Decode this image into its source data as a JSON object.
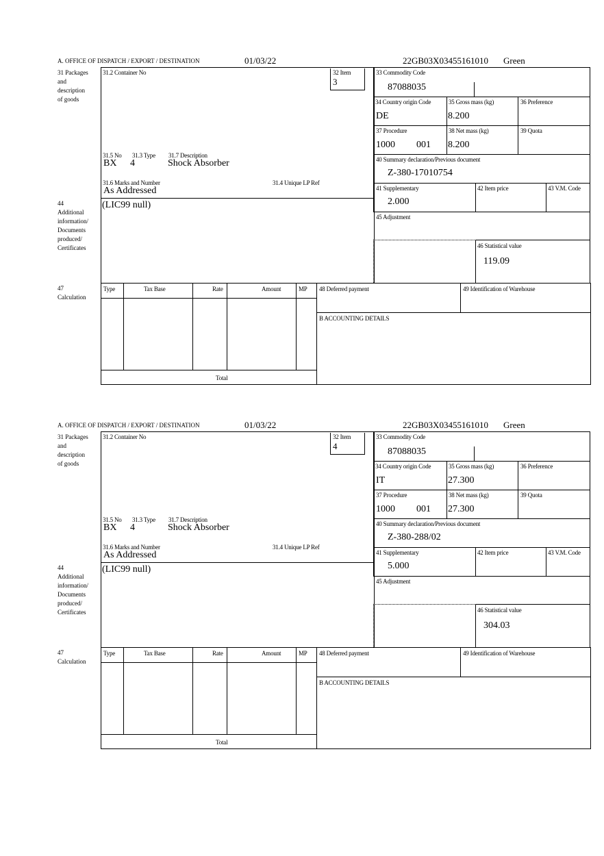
{
  "labels": {
    "office": "A. OFFICE OF DISPATCH / EXPORT / DESTINATION",
    "box31": [
      "31 Packages",
      "and",
      "description",
      "of goods"
    ],
    "container_no": "31.2 Container No",
    "item": "32 Item",
    "no": "31.5 No",
    "type": "31.3 Type",
    "description": "31.7 Description",
    "marks": "31.6 Marks and Number",
    "unique_ref": "31.4 Unique LP Ref",
    "commodity": "33 Commodity Code",
    "country": "34 Country origin Code",
    "gross": "35 Gross mass (kg)",
    "preference": "36 Preference",
    "procedure": "37 Procedure",
    "net": "38 Net mass (kg)",
    "quota": "39 Quota",
    "summary": "40 Summary declaration/Previous document",
    "supplementary": "41 Supplementary",
    "item_price": "42 Item price",
    "vm_code": "43 V.M. Code",
    "adjustment": "45 Adjustment",
    "statistical": "46 Statistical value",
    "box44": [
      "44",
      "Additional",
      "information/",
      "Documents",
      "produced/",
      "Certificates"
    ],
    "box47": [
      "47",
      "Calculation"
    ],
    "calc_cols": [
      "Type",
      "Tax Base",
      "Rate",
      "Amount",
      "MP"
    ],
    "total": "Total",
    "deferred": "48 Deferred payment",
    "warehouse": "49 Identification of Warehouse",
    "accounting": "B ACCOUNTING DETAILS"
  },
  "forms": [
    {
      "date": "01/03/22",
      "reference": "22GB03X03455161010",
      "route": "Green",
      "item": "3",
      "package_kind": "BX",
      "package_count": "4",
      "description": "Shock Absorber",
      "marks": "As Addressed",
      "commodity_code": "87088035",
      "country": "DE",
      "gross_mass": "8.200",
      "procedure": "1000",
      "procedure_extra": "001",
      "net_mass": "8.200",
      "previous_document": "Z-380-17010754",
      "supplementary": "2.000",
      "statistical_value": "119.09",
      "additional_info": "(LIC99 null)"
    },
    {
      "date": "01/03/22",
      "reference": "22GB03X03455161010",
      "route": "Green",
      "item": "4",
      "package_kind": "BX",
      "package_count": "4",
      "description": "Shock Absorber",
      "marks": "As Addressed",
      "commodity_code": "87088035",
      "country": "IT",
      "gross_mass": "27.300",
      "procedure": "1000",
      "procedure_extra": "001",
      "net_mass": "27.300",
      "previous_document": "Z-380-288/02",
      "supplementary": "5.000",
      "statistical_value": "304.03",
      "additional_info": "(LIC99 null)"
    }
  ]
}
